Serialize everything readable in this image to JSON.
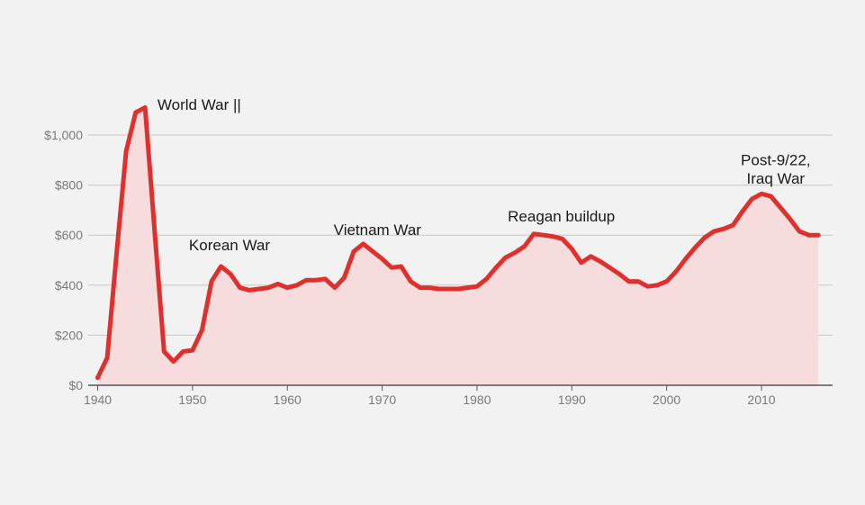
{
  "chart_data": {
    "type": "area",
    "title": "",
    "xlabel": "",
    "ylabel": "",
    "xlim": [
      1939,
      2017.5
    ],
    "ylim": [
      0,
      1000
    ],
    "grid": true,
    "legend": "none",
    "colors": {
      "line": "#e0302e",
      "fill": "#f6dcdc",
      "grid": "#c8c8c8",
      "axis": "#555555",
      "background": "#f1f2f1"
    },
    "x_ticks": [
      1940,
      1950,
      1960,
      1970,
      1980,
      1990,
      2000,
      2010
    ],
    "x_tick_labels": [
      "1940",
      "1950",
      "1960",
      "1970",
      "1980",
      "1990",
      "2000",
      "2010"
    ],
    "y_ticks": [
      0,
      200,
      400,
      600,
      800,
      1000
    ],
    "y_tick_labels": [
      "$0",
      "$200",
      "$400",
      "$600",
      "$800",
      "$1,000"
    ],
    "series": [
      {
        "x": [
          1940,
          1941,
          1942,
          1943,
          1944,
          1945,
          1946,
          1947,
          1948,
          1949,
          1950,
          1951,
          1952,
          1953,
          1954,
          1955,
          1956,
          1957,
          1958,
          1959,
          1960,
          1961,
          1962,
          1963,
          1964,
          1965,
          1966,
          1967,
          1968,
          1969,
          1970,
          1971,
          1972,
          1973,
          1974,
          1975,
          1976,
          1977,
          1978,
          1979,
          1980,
          1981,
          1982,
          1983,
          1984,
          1985,
          1986,
          1987,
          1988,
          1989,
          1990,
          1991,
          1992,
          1993,
          1994,
          1995,
          1996,
          1997,
          1998,
          1999,
          2000,
          2001,
          2002,
          2003,
          2004,
          2005,
          2006,
          2007,
          2008,
          2009,
          2010,
          2011,
          2012,
          2013,
          2014,
          2015,
          2016
        ],
        "values": [
          30,
          110,
          530,
          935,
          1090,
          1110,
          620,
          135,
          95,
          135,
          140,
          220,
          415,
          475,
          445,
          390,
          380,
          385,
          390,
          405,
          390,
          400,
          420,
          420,
          425,
          390,
          430,
          535,
          565,
          535,
          505,
          470,
          475,
          415,
          390,
          390,
          385,
          385,
          385,
          390,
          395,
          425,
          470,
          510,
          530,
          555,
          605,
          600,
          595,
          585,
          545,
          490,
          515,
          495,
          470,
          445,
          415,
          415,
          395,
          400,
          415,
          455,
          505,
          550,
          590,
          615,
          625,
          640,
          695,
          745,
          765,
          755,
          710,
          665,
          615,
          600,
          600
        ]
      }
    ],
    "annotations": [
      {
        "text": "World War ||",
        "x": 1946.3,
        "y": 1100
      },
      {
        "text": "Korean War",
        "x": 1953.9,
        "y": 540
      },
      {
        "text": "Vietnam War",
        "x": 1969.5,
        "y": 600
      },
      {
        "text": "Reagan buildup",
        "x": 1988.9,
        "y": 655
      },
      {
        "text": "Post-9/22,",
        "x": 2011.5,
        "y": 880
      },
      {
        "text": "Iraq War",
        "x": 2011.5,
        "y": 805
      }
    ]
  }
}
